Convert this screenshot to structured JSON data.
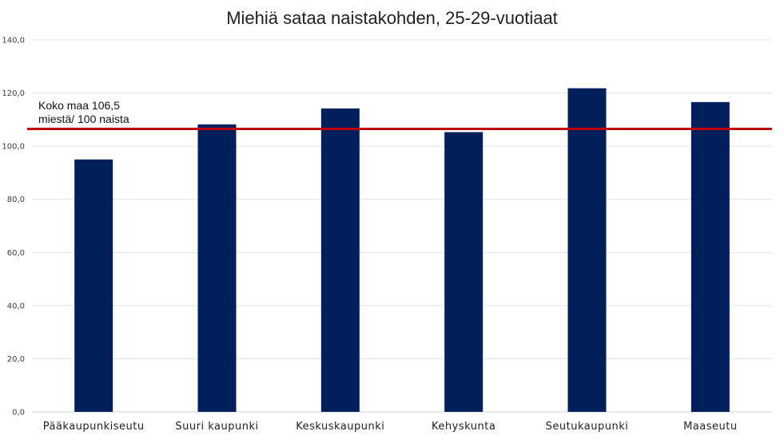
{
  "chart_data": {
    "type": "bar",
    "title": "Miehiä sataa naistakohden, 25-29-vuotiaat",
    "xlabel": "",
    "ylabel": "",
    "categories": [
      "Pääkaupunkiseutu",
      "Suuri kaupunki",
      "Keskuskaupunki",
      "Kehyskunta",
      "Seutukaupunki",
      "Maaseutu"
    ],
    "values": [
      95.0,
      108.2,
      114.2,
      105.3,
      121.8,
      116.6
    ],
    "ylim": [
      0,
      140
    ],
    "yticks": [
      0,
      20,
      40,
      60,
      80,
      100,
      120,
      140
    ],
    "ytick_labels": [
      "0,0",
      "20,0",
      "40,0",
      "60,0",
      "80,0",
      "100,0",
      "120,0",
      "140,0"
    ],
    "grid": true,
    "bar_color": "#001f5b",
    "reference_line": {
      "value": 106.5,
      "color": "#c00000",
      "label_line1": "Koko maa 106,5",
      "label_line2": "miestä/ 100 naista"
    }
  }
}
